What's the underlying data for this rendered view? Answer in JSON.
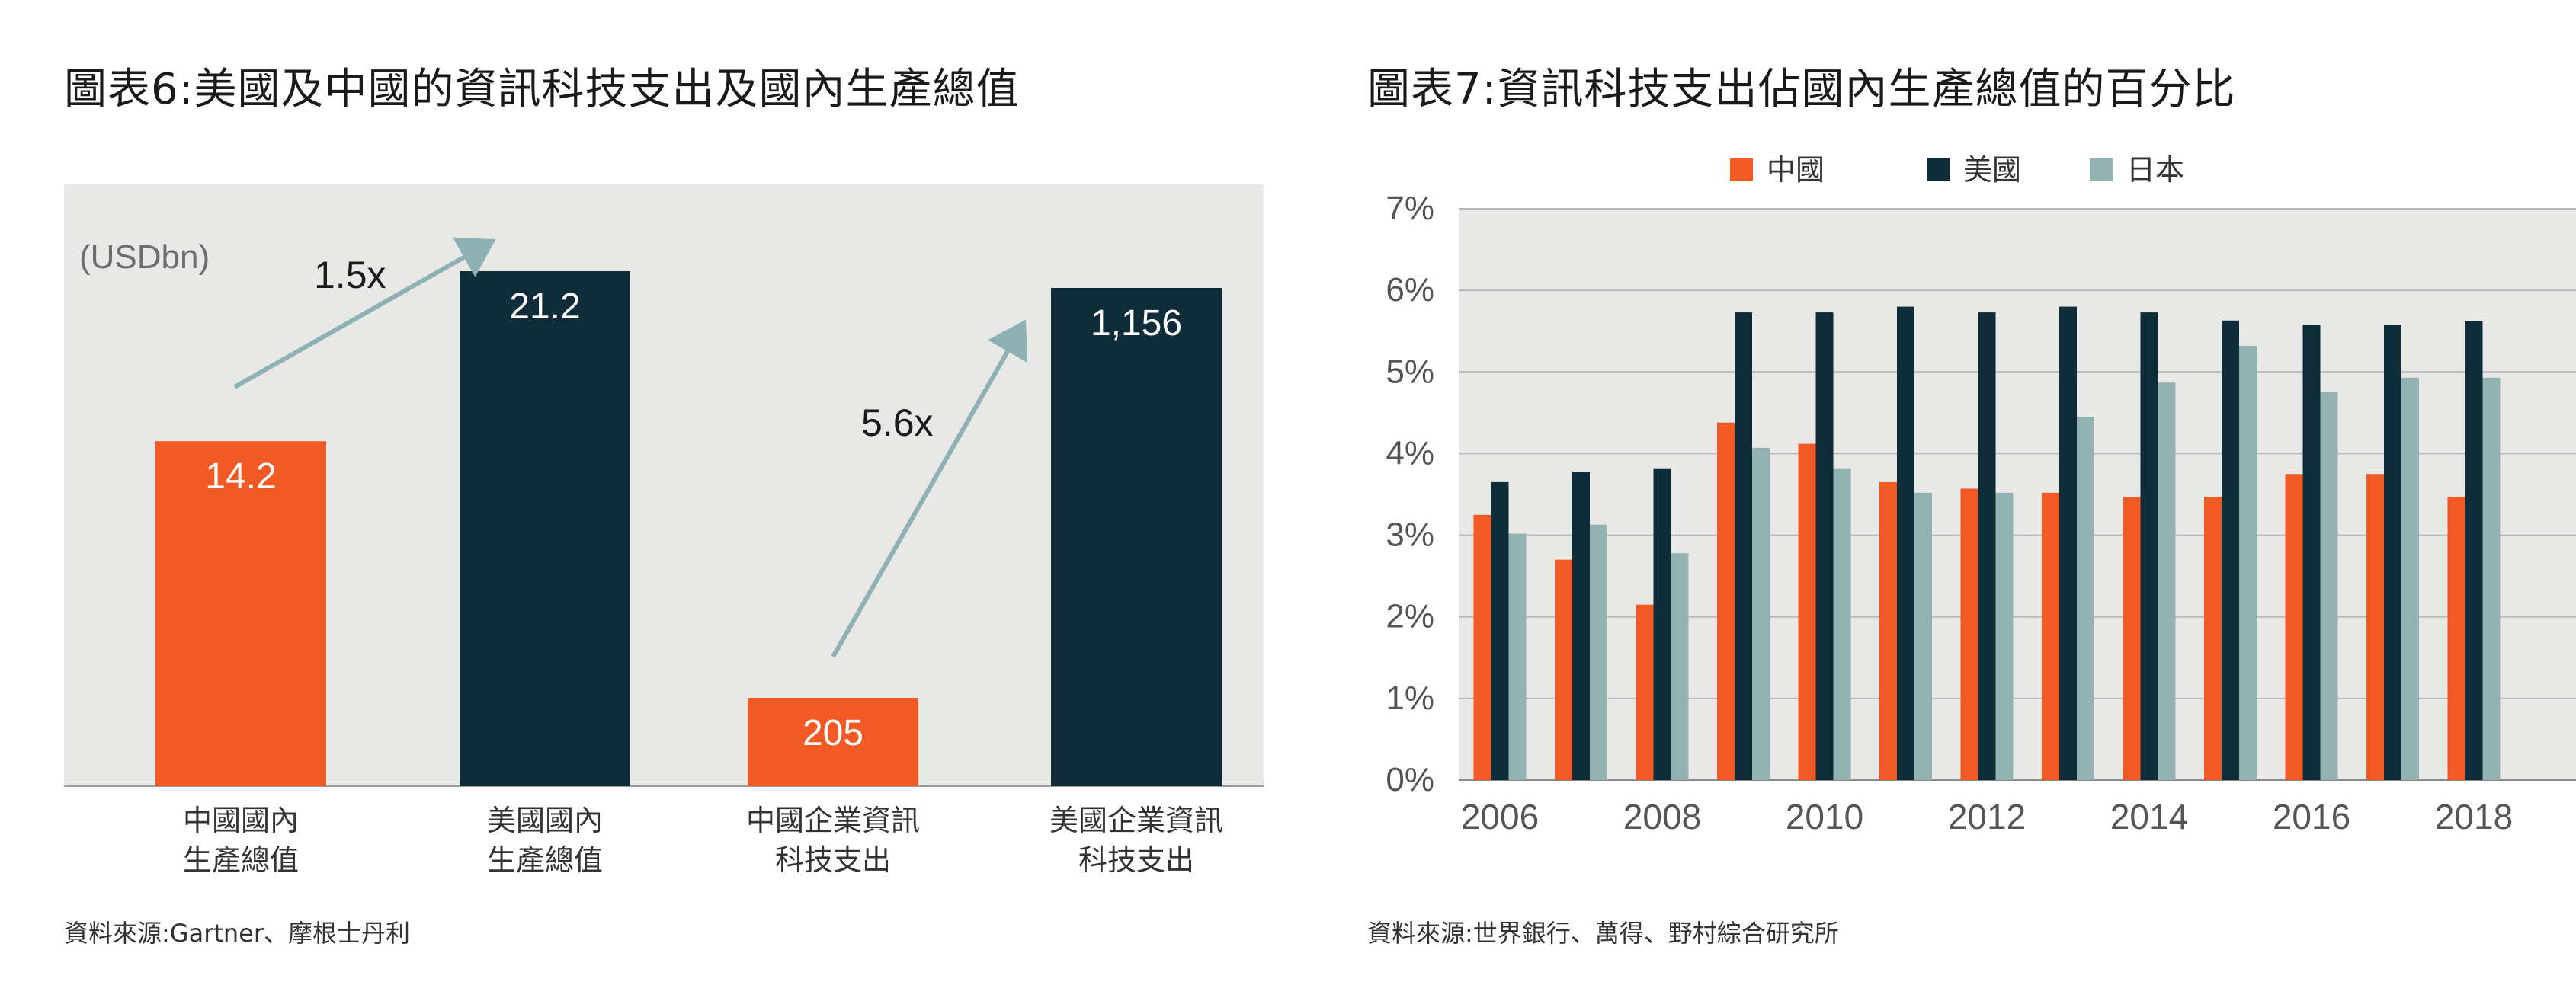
{
  "left": {
    "title": "圖表6:美國及中國的資訊科技支出及國內生產總值",
    "source": "資料來源:Gartner、摩根士丹利",
    "unit_label": "(USDbn)",
    "colors": {
      "china": "#f15a24",
      "us": "#0e2d38",
      "arrow": "#8eb1b3",
      "bg": "#e8e8e6"
    },
    "chart_data": {
      "type": "bar",
      "categories": [
        "中國國內\n生產總值",
        "美國國內\n生產總值",
        "中國企業資訊\n科技支出",
        "美國企業資訊\n科技支出"
      ],
      "values": [
        14.2,
        21.2,
        205,
        1156
      ],
      "value_labels": [
        "14.2",
        "21.2",
        "205",
        "1,156"
      ],
      "bar_colors": [
        "china",
        "us",
        "china",
        "us"
      ],
      "annotations": [
        {
          "label": "1.5x",
          "from": 0,
          "to": 1
        },
        {
          "label": "5.6x",
          "from": 2,
          "to": 3
        }
      ]
    }
  },
  "right": {
    "title": "圖表7:資訊科技支出佔國內生產總值的百分比",
    "source": "資料來源:世界銀行、萬得、野村綜合研究所",
    "chart_data": {
      "type": "bar",
      "legend_position": "top",
      "grid": true,
      "ylim": [
        0,
        7
      ],
      "y_ticks": [
        "0%",
        "1%",
        "2%",
        "3%",
        "4%",
        "5%",
        "6%",
        "7%"
      ],
      "x_tick_labels": [
        "2006",
        "2008",
        "2010",
        "2012",
        "2014",
        "2016",
        "2018"
      ],
      "categories": [
        "2006",
        "2007",
        "2008",
        "2009",
        "2010",
        "2011",
        "2012",
        "2013",
        "2014",
        "2015",
        "2016",
        "2017",
        "2018"
      ],
      "series": [
        {
          "name": "中國",
          "color": "#f15a24",
          "values": [
            3.25,
            2.7,
            2.15,
            4.38,
            4.12,
            3.65,
            3.57,
            3.52,
            3.47,
            3.47,
            3.75,
            3.75,
            3.47
          ]
        },
        {
          "name": "美國",
          "color": "#0e2d38",
          "values": [
            3.65,
            3.78,
            3.82,
            5.73,
            5.73,
            5.8,
            5.73,
            5.8,
            5.73,
            5.63,
            5.58,
            5.58,
            5.62
          ]
        },
        {
          "name": "日本",
          "color": "#94b2b2",
          "values": [
            3.02,
            3.13,
            2.78,
            4.07,
            3.82,
            3.52,
            3.52,
            4.45,
            4.87,
            5.32,
            4.75,
            4.93,
            4.93
          ]
        }
      ]
    }
  }
}
